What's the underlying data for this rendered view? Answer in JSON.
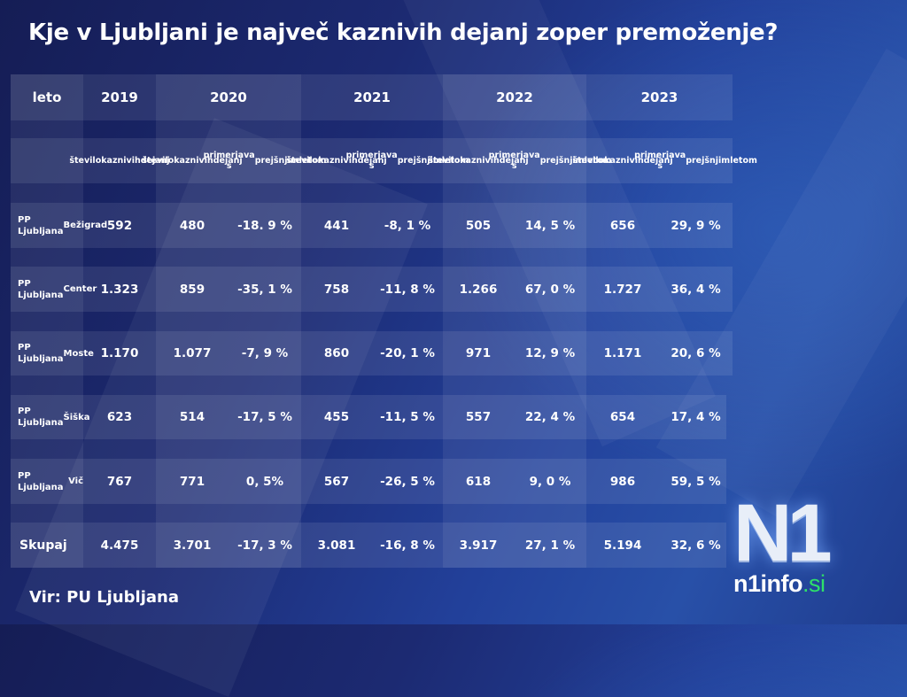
{
  "title": "Kje v Ljubljani je največ kaznivih dejanj zoper premoženje?",
  "table": {
    "header_label": "leto",
    "years": [
      "2019",
      "2020",
      "2021",
      "2022",
      "2023"
    ],
    "sub_count": "število kaznivih dejanj",
    "sub_count_lines": [
      "število",
      "kaznivih",
      "dejanj"
    ],
    "sub_compare_lines": [
      "primerjava s",
      "prejšnjim",
      "letom"
    ],
    "rows": [
      {
        "label_lines": [
          "PP Ljubljana",
          "Bežigrad"
        ],
        "values": [
          "592",
          "480",
          "-18. 9 %",
          "441",
          "-8, 1 %",
          "505",
          "14, 5 %",
          "656",
          "29, 9 %"
        ]
      },
      {
        "label_lines": [
          "PP Ljubljana",
          "Center"
        ],
        "values": [
          "1.323",
          "859",
          "-35, 1 %",
          "758",
          "-11, 8 %",
          "1.266",
          "67, 0 %",
          "1.727",
          "36, 4 %"
        ]
      },
      {
        "label_lines": [
          "PP Ljubljana",
          "Moste"
        ],
        "values": [
          "1.170",
          "1.077",
          "-7, 9 %",
          "860",
          "-20, 1 %",
          "971",
          "12, 9 %",
          "1.171",
          "20, 6 %"
        ]
      },
      {
        "label_lines": [
          "PP Ljubljana",
          "Šiška"
        ],
        "values": [
          "623",
          "514",
          "-17, 5 %",
          "455",
          "-11, 5 %",
          "557",
          "22, 4 %",
          "654",
          "17, 4 %"
        ]
      },
      {
        "label_lines": [
          "PP Ljubljana",
          "Vič"
        ],
        "values": [
          "767",
          "771",
          "0, 5%",
          "567",
          "-26, 5 %",
          "618",
          "9, 0 %",
          "986",
          "59, 5 %"
        ]
      }
    ],
    "total": {
      "label": "Skupaj",
      "values": [
        "4.475",
        "3.701",
        "-17, 3 %",
        "3.081",
        "-16, 8 %",
        "3.917",
        "27, 1 %",
        "5.194",
        "32, 6 %"
      ]
    }
  },
  "source": "Vir: PU Ljubljana",
  "logo": {
    "mark": "N1",
    "domain": "n1info",
    ".si": ".si",
    "tld": ".si"
  },
  "colors": {
    "background_dark": "#151d55",
    "background_light": "#2850a8",
    "accent_green": "#2ee06a",
    "text": "#ffffff"
  },
  "chart_data": {
    "type": "table",
    "title": "Kje v Ljubljani je največ kaznivih dejanj zoper premoženje?",
    "columns": [
      "leto",
      "2019 število kaznivih dejanj",
      "2020 število kaznivih dejanj",
      "2020 primerjava s prejšnjim letom",
      "2021 število kaznivih dejanj",
      "2021 primerjava s prejšnjim letom",
      "2022 število kaznivih dejanj",
      "2022 primerjava s prejšnjim letom",
      "2023 število kaznivih dejanj",
      "2023 primerjava s prejšnjim letom"
    ],
    "rows": [
      [
        "PP Ljubljana Bežigrad",
        592,
        480,
        "-18.9%",
        441,
        "-8.1%",
        505,
        "14.5%",
        656,
        "29.9%"
      ],
      [
        "PP Ljubljana Center",
        1323,
        859,
        "-35.1%",
        758,
        "-11.8%",
        1266,
        "67.0%",
        1727,
        "36.4%"
      ],
      [
        "PP Ljubljana Moste",
        1170,
        1077,
        "-7.9%",
        860,
        "-20.1%",
        971,
        "12.9%",
        1171,
        "20.6%"
      ],
      [
        "PP Ljubljana Šiška",
        623,
        514,
        "-17.5%",
        455,
        "-11.5%",
        557,
        "22.4%",
        654,
        "17.4%"
      ],
      [
        "PP Ljubljana Vič",
        767,
        771,
        "0.5%",
        567,
        "-26.5%",
        618,
        "9.0%",
        986,
        "59.5%"
      ],
      [
        "Skupaj",
        4475,
        3701,
        "-17.3%",
        3081,
        "-16.8%",
        3917,
        "27.1%",
        5194,
        "32.6%"
      ]
    ],
    "source": "Vir: PU Ljubljana"
  }
}
